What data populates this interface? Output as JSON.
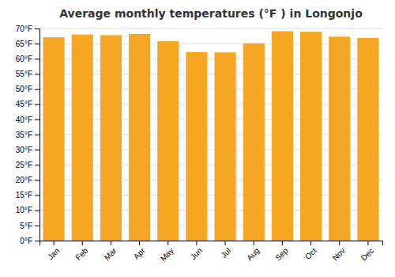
{
  "chart_data": {
    "type": "bar",
    "title": "Average monthly temperatures (°F ) in Longonjo",
    "categories": [
      "Jan",
      "Feb",
      "Mar",
      "Apr",
      "May",
      "Jun",
      "Jul",
      "Aug",
      "Sep",
      "Oct",
      "Nov",
      "Dec"
    ],
    "values": [
      67.1,
      68.0,
      67.8,
      68.2,
      65.8,
      62.2,
      62.1,
      65.1,
      69.1,
      68.9,
      67.3,
      66.9
    ],
    "color": "#F5A623",
    "ylim": [
      0,
      70
    ],
    "yticks": [
      {
        "value": 0,
        "label": "0°F"
      },
      {
        "value": 5,
        "label": "5°F"
      },
      {
        "value": 10,
        "label": "10°F"
      },
      {
        "value": 15,
        "label": "15°F"
      },
      {
        "value": 20,
        "label": "20°F"
      },
      {
        "value": 25,
        "label": "25°F"
      },
      {
        "value": 30,
        "label": "30°F"
      },
      {
        "value": 35,
        "label": "35°F"
      },
      {
        "value": 40,
        "label": "40°F"
      },
      {
        "value": 45,
        "label": "45°F"
      },
      {
        "value": 50,
        "label": "50°F"
      },
      {
        "value": 55,
        "label": "55°F"
      },
      {
        "value": 60,
        "label": "60°F"
      },
      {
        "value": 65,
        "label": "65°F"
      },
      {
        "value": 70,
        "label": "70°F"
      }
    ],
    "grid": true
  }
}
